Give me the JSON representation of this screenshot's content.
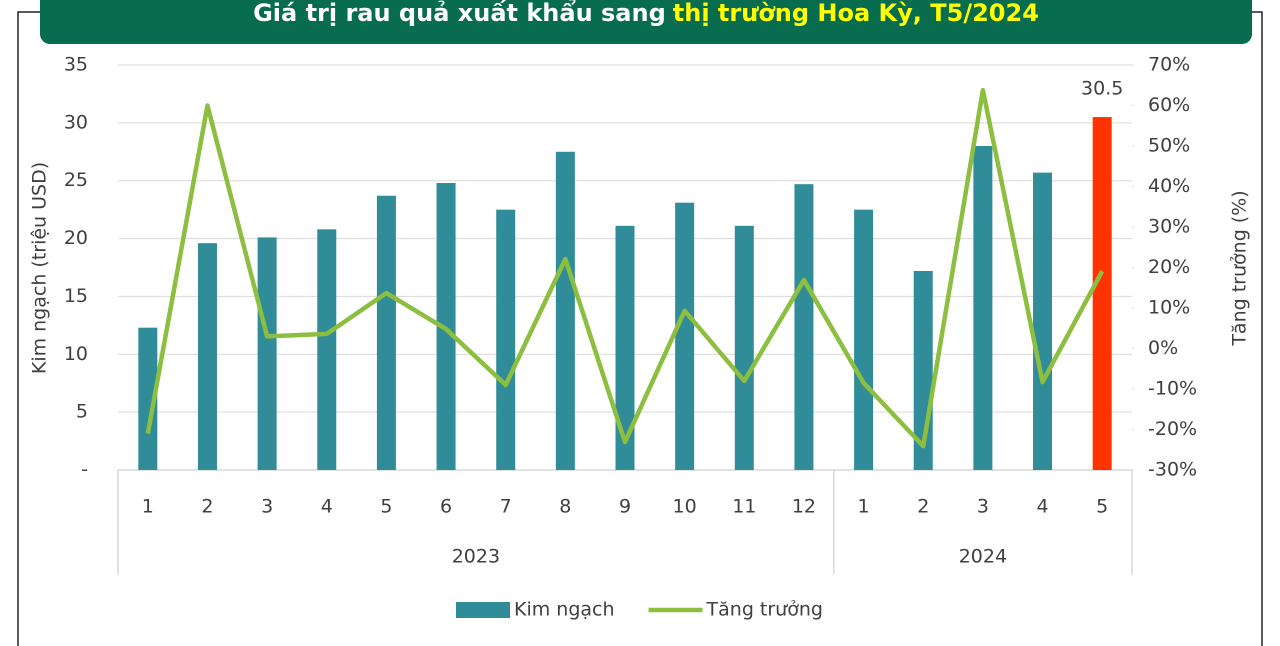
{
  "chart_data": {
    "type": "bar-line",
    "title": [
      "Giá trị rau quả xuất khẩu sang",
      "thị trường Hoa Kỳ, T5/2024"
    ],
    "title_colors": [
      "#ffffff",
      "#ffff00"
    ],
    "categories": [
      "1",
      "2",
      "3",
      "4",
      "5",
      "6",
      "7",
      "8",
      "9",
      "10",
      "11",
      "12",
      "1",
      "2",
      "3",
      "4",
      "5"
    ],
    "groups": [
      {
        "label": "2023",
        "count": 12
      },
      {
        "label": "2024",
        "count": 5
      }
    ],
    "series": [
      {
        "name": "Kim ngạch",
        "type": "bar",
        "color": "#318c99",
        "colors": [
          "#318c99",
          "#318c99",
          "#318c99",
          "#318c99",
          "#318c99",
          "#318c99",
          "#318c99",
          "#318c99",
          "#318c99",
          "#318c99",
          "#318c99",
          "#318c99",
          "#318c99",
          "#318c99",
          "#318c99",
          "#318c99",
          "#ff3300"
        ],
        "values": [
          12.3,
          19.6,
          20.1,
          20.8,
          23.7,
          24.8,
          22.5,
          27.5,
          21.1,
          23.1,
          21.1,
          24.7,
          22.5,
          17.2,
          28.0,
          25.7,
          30.5
        ],
        "value_labels": [
          null,
          null,
          null,
          null,
          null,
          null,
          null,
          null,
          null,
          null,
          null,
          null,
          null,
          null,
          null,
          null,
          "30.5"
        ]
      },
      {
        "name": "Tăng trưởng",
        "type": "line",
        "color": "#8cbf3f",
        "axis": "y2",
        "values": [
          -21,
          60,
          3,
          3.6,
          13.7,
          4.8,
          -9,
          22.1,
          -23.1,
          9.3,
          -8,
          16.9,
          -8.5,
          -24.1,
          63.8,
          -8.3,
          19.1
        ]
      }
    ],
    "ylabel": "Kim ngạch (triệu USD)",
    "y2label": "Tăng trưởng (%)",
    "ylim": [
      0,
      35
    ],
    "yticks": [
      {
        "value": 0,
        "label": "-"
      },
      5,
      10,
      15,
      20,
      25,
      30,
      35
    ],
    "y2lim": [
      -30,
      70
    ],
    "y2ticks": [
      {
        "value": -30,
        "label": "-30%"
      },
      {
        "value": -20,
        "label": "-20%"
      },
      {
        "value": -10,
        "label": "-10%"
      },
      {
        "value": 0,
        "label": "0%"
      },
      {
        "value": 10,
        "label": "10%"
      },
      {
        "value": 20,
        "label": "20%"
      },
      {
        "value": 30,
        "label": "30%"
      },
      {
        "value": 40,
        "label": "40%"
      },
      {
        "value": 50,
        "label": "50%"
      },
      {
        "value": 60,
        "label": "60%"
      },
      {
        "value": 70,
        "label": "70%"
      }
    ],
    "grid": true,
    "legend": "bottom"
  }
}
